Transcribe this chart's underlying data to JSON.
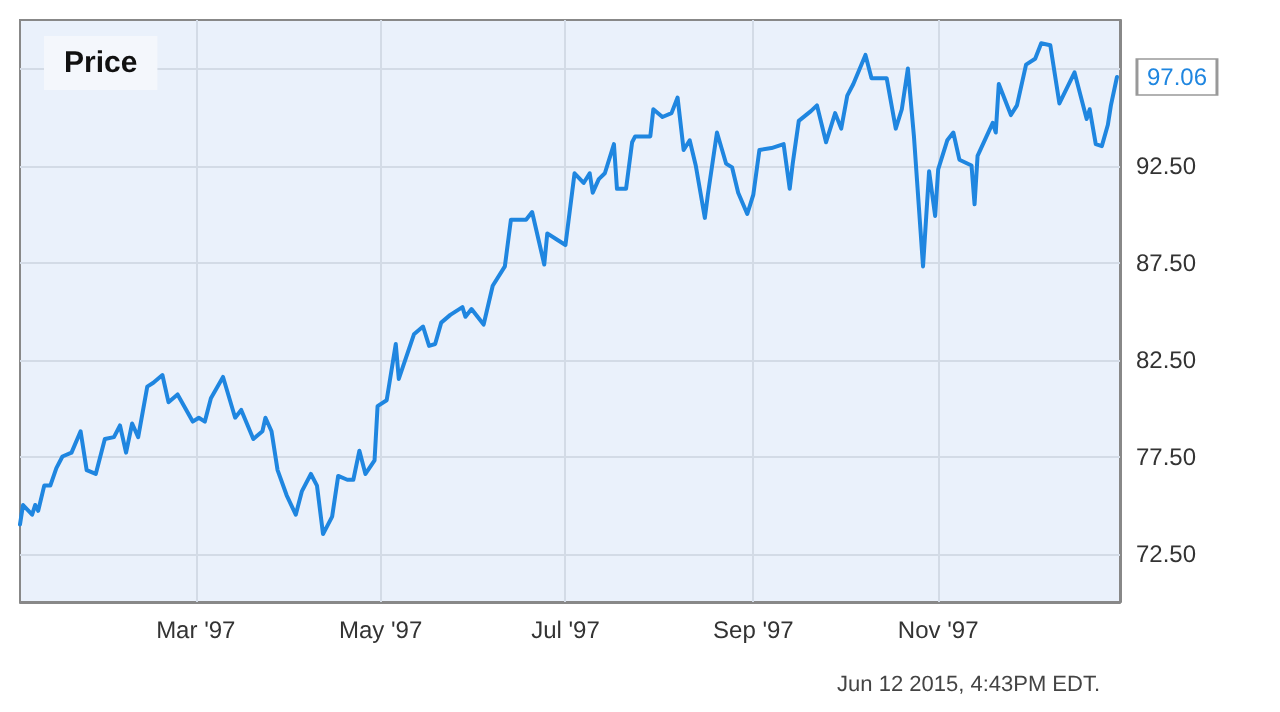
{
  "chart_data": {
    "type": "line",
    "title": "Price",
    "x": [
      "1997-01-02",
      "1997-01-03",
      "1997-01-06",
      "1997-01-07",
      "1997-01-08",
      "1997-01-10",
      "1997-01-12",
      "1997-01-14",
      "1997-01-16",
      "1997-01-19",
      "1997-01-22",
      "1997-01-24",
      "1997-01-27",
      "1997-01-30",
      "1997-02-02",
      "1997-02-04",
      "1997-02-06",
      "1997-02-08",
      "1997-02-10",
      "1997-02-13",
      "1997-02-15",
      "1997-02-18",
      "1997-02-20",
      "1997-02-23",
      "1997-02-28",
      "1997-03-02",
      "1997-03-04",
      "1997-03-06",
      "1997-03-10",
      "1997-03-14",
      "1997-03-16",
      "1997-03-20",
      "1997-03-23",
      "1997-03-24",
      "1997-03-26",
      "1997-03-28",
      "1997-03-31",
      "1997-04-03",
      "1997-04-05",
      "1997-04-08",
      "1997-04-10",
      "1997-04-12",
      "1997-04-15",
      "1997-04-17",
      "1997-04-20",
      "1997-04-22",
      "1997-04-24",
      "1997-04-26",
      "1997-04-29",
      "1997-04-30",
      "1997-05-03",
      "1997-05-06",
      "1997-05-07",
      "1997-05-12",
      "1997-05-15",
      "1997-05-17",
      "1997-05-19",
      "1997-05-21",
      "1997-05-24",
      "1997-05-28",
      "1997-05-29",
      "1997-05-31",
      "1997-06-04",
      "1997-06-07",
      "1997-06-11",
      "1997-06-13",
      "1997-06-18",
      "1997-06-20",
      "1997-06-24",
      "1997-06-25",
      "1997-06-28",
      "1997-07-01",
      "1997-07-04",
      "1997-07-07",
      "1997-07-09",
      "1997-07-10",
      "1997-07-12",
      "1997-07-14",
      "1997-07-17",
      "1997-07-18",
      "1997-07-21",
      "1997-07-23",
      "1997-07-24",
      "1997-07-29",
      "1997-07-30",
      "1997-08-02",
      "1997-08-05",
      "1997-08-07",
      "1997-08-09",
      "1997-08-11",
      "1997-08-13",
      "1997-08-16",
      "1997-08-17",
      "1997-08-20",
      "1997-08-23",
      "1997-08-25",
      "1997-08-27",
      "1997-08-30",
      "1997-09-01",
      "1997-09-03",
      "1997-09-07",
      "1997-09-11",
      "1997-09-13",
      "1997-09-14",
      "1997-09-16",
      "1997-09-20",
      "1997-09-22",
      "1997-09-25",
      "1997-09-28",
      "1997-09-30",
      "1997-10-02",
      "1997-10-04",
      "1997-10-08",
      "1997-10-10",
      "1997-10-15",
      "1997-10-18",
      "1997-10-20",
      "1997-10-22",
      "1997-10-24",
      "1997-10-27",
      "1997-10-29",
      "1997-10-31",
      "1997-11-01",
      "1997-11-04",
      "1997-11-06",
      "1997-11-08",
      "1997-11-12",
      "1997-11-13",
      "1997-11-14",
      "1997-11-19",
      "1997-11-20",
      "1997-11-21",
      "1997-11-25",
      "1997-11-27",
      "1997-11-30",
      "1997-12-03",
      "1997-12-05",
      "1997-12-08",
      "1997-12-11",
      "1997-12-16",
      "1997-12-20",
      "1997-12-21",
      "1997-12-23",
      "1997-12-25",
      "1997-12-27",
      "1997-12-28",
      "1997-12-30"
    ],
    "series": [
      {
        "color": "#1f86e0",
        "values": [
          74.0,
          75.0,
          74.5,
          75.0,
          74.7,
          76.0,
          76.0,
          76.9,
          77.5,
          77.7,
          78.8,
          76.8,
          76.6,
          78.4,
          78.5,
          79.1,
          77.7,
          79.2,
          78.5,
          81.1,
          81.3,
          81.7,
          80.3,
          80.7,
          79.3,
          79.5,
          79.3,
          80.5,
          81.6,
          79.5,
          79.9,
          78.4,
          78.8,
          79.5,
          78.8,
          76.8,
          75.5,
          74.5,
          75.7,
          76.6,
          76.0,
          73.5,
          74.4,
          76.5,
          76.3,
          76.3,
          77.8,
          76.6,
          77.3,
          80.1,
          80.4,
          83.3,
          81.5,
          83.8,
          84.2,
          83.2,
          83.3,
          84.4,
          84.8,
          85.2,
          84.7,
          85.1,
          84.3,
          86.3,
          87.3,
          89.7,
          89.7,
          90.1,
          87.4,
          89.0,
          88.7,
          88.4,
          92.1,
          91.6,
          92.1,
          91.1,
          91.8,
          92.1,
          93.6,
          91.3,
          91.3,
          93.7,
          94.0,
          94.0,
          95.4,
          95.0,
          95.2,
          96.0,
          93.3,
          93.8,
          92.5,
          89.8,
          91.0,
          94.2,
          92.6,
          92.4,
          91.1,
          90.0,
          91.0,
          93.3,
          93.4,
          93.6,
          91.3,
          92.6,
          94.8,
          95.3,
          95.6,
          93.7,
          95.2,
          94.4,
          96.1,
          96.7,
          98.2,
          97.0,
          97.0,
          94.4,
          95.4,
          97.5,
          94.0,
          87.3,
          92.2,
          89.9,
          92.3,
          93.8,
          94.2,
          92.8,
          92.5,
          90.5,
          93.0,
          94.7,
          94.2,
          96.7,
          95.1,
          95.6,
          97.7,
          98.0,
          98.8,
          98.7,
          95.7,
          97.3,
          94.9,
          95.4,
          93.6,
          93.5,
          94.6,
          95.6,
          97.06
        ]
      }
    ],
    "xlim": [
      "1997-01-02",
      "1997-12-31"
    ],
    "xticks": [
      {
        "value": "1997-03-01",
        "label": "Mar '97"
      },
      {
        "value": "1997-05-01",
        "label": "May '97"
      },
      {
        "value": "1997-07-01",
        "label": "Jul '97"
      },
      {
        "value": "1997-09-01",
        "label": "Sep '97"
      },
      {
        "value": "1997-11-01",
        "label": "Nov '97"
      }
    ],
    "ylim": [
      70,
      100
    ],
    "yticks": [
      {
        "value": 72.5,
        "label": "72.50"
      },
      {
        "value": 77.5,
        "label": "77.50"
      },
      {
        "value": 82.5,
        "label": "82.50"
      },
      {
        "value": 87.5,
        "label": "87.50"
      },
      {
        "value": 92.5,
        "label": "92.50"
      },
      {
        "value": 97.5,
        "label": null
      }
    ],
    "grid": true,
    "marker": "none",
    "line_style": "solid",
    "annotations": [
      {
        "text": "97.06",
        "x": "1997-12-30",
        "y": 97.06
      },
      "Jun 12 2015, 4:43PM EDT."
    ]
  }
}
